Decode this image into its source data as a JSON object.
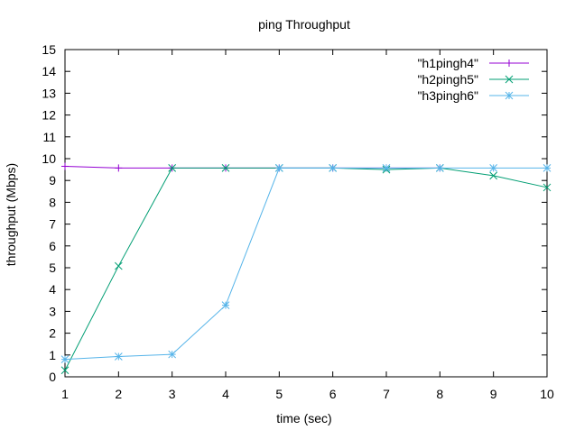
{
  "chart_data": {
    "type": "line",
    "title": "ping Throughput",
    "xlabel": "time (sec)",
    "ylabel": "throughput (Mbps)",
    "xlim": [
      1,
      10
    ],
    "ylim": [
      0,
      15
    ],
    "x_ticks": [
      "1",
      "2",
      "3",
      "4",
      "5",
      "6",
      "7",
      "8",
      "9",
      "10"
    ],
    "y_ticks": [
      "0",
      "1",
      "2",
      "3",
      "4",
      "5",
      "6",
      "7",
      "8",
      "9",
      "10",
      "11",
      "12",
      "13",
      "14",
      "15"
    ],
    "grid": false,
    "legend_position": "top-right",
    "series": [
      {
        "name": "\"h1pingh4\"",
        "color": "#9400d3",
        "marker": "plus",
        "x": [
          1,
          2,
          3,
          4,
          5,
          6,
          7,
          8
        ],
        "values": [
          9.65,
          9.57,
          9.57,
          9.57,
          9.57,
          9.57,
          9.57,
          9.57
        ]
      },
      {
        "name": "\"h2pingh5\"",
        "color": "#009e73",
        "marker": "cross",
        "x": [
          1,
          2,
          3,
          4,
          5,
          6,
          7,
          8,
          9,
          10
        ],
        "values": [
          0.3,
          5.08,
          9.57,
          9.57,
          9.57,
          9.57,
          9.5,
          9.57,
          9.22,
          8.68
        ]
      },
      {
        "name": "\"h3pingh6\"",
        "color": "#56b4e9",
        "marker": "star",
        "x": [
          1,
          2,
          3,
          4,
          5,
          6,
          7,
          8,
          9,
          10
        ],
        "values": [
          0.8,
          0.93,
          1.03,
          3.28,
          9.57,
          9.57,
          9.57,
          9.57,
          9.57,
          9.57
        ]
      }
    ]
  }
}
